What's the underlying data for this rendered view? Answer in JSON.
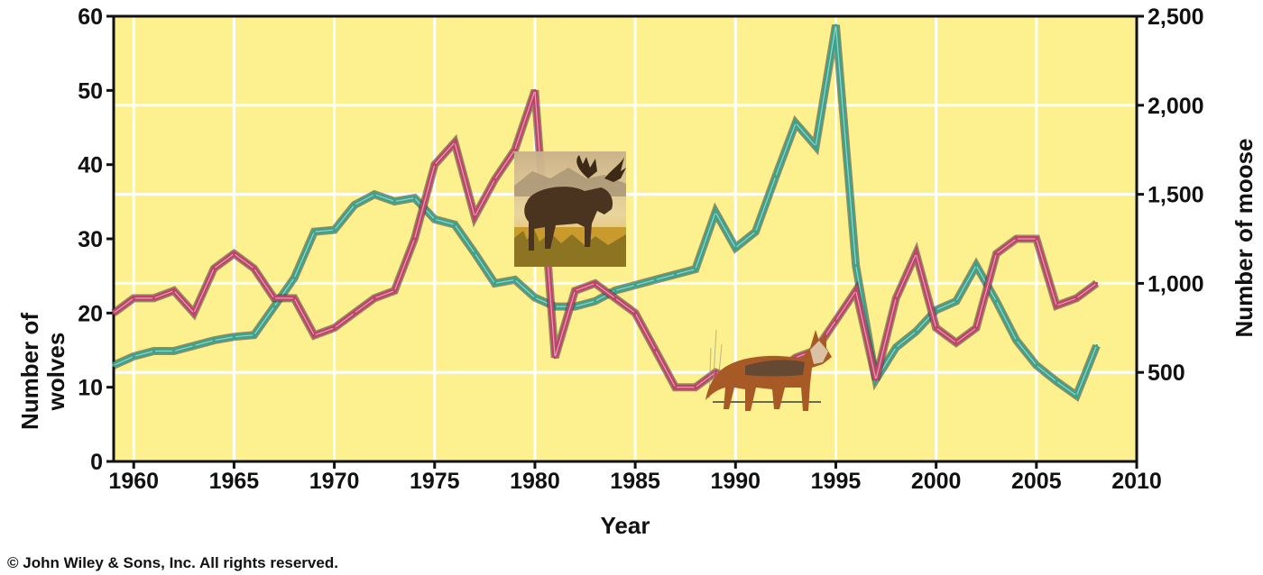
{
  "chart_data": {
    "type": "line",
    "xlabel": "Year",
    "ylabel_left": "Number of wolves",
    "ylabel_left_lines": [
      "Number of",
      "wolves"
    ],
    "ylabel_right": "Number of moose",
    "xlim": [
      1959,
      2010
    ],
    "ylim_left": [
      0,
      60
    ],
    "ylim_right": [
      0,
      2500
    ],
    "x_ticks": [
      1960,
      1965,
      1970,
      1975,
      1980,
      1985,
      1990,
      1995,
      2000,
      2005,
      2010
    ],
    "y_ticks_left": [
      0,
      10,
      20,
      30,
      40,
      50,
      60
    ],
    "y_ticks_right": [
      500,
      1000,
      1500,
      2000,
      2500
    ],
    "y_ticks_right_labels": [
      "500",
      "1,000",
      "1,500",
      "2,000",
      "2,500"
    ],
    "grid": true,
    "background_color": "#fdf08f",
    "series": [
      {
        "name": "Moose",
        "axis": "right",
        "color": "#3aa38c",
        "icon": "moose-illustration",
        "x": [
          1959,
          1960,
          1961,
          1962,
          1963,
          1964,
          1965,
          1966,
          1967,
          1968,
          1969,
          1970,
          1971,
          1972,
          1973,
          1974,
          1975,
          1976,
          1977,
          1978,
          1979,
          1980,
          1981,
          1982,
          1983,
          1984,
          1985,
          1986,
          1987,
          1988,
          1989,
          1990,
          1991,
          1992,
          1993,
          1994,
          1995,
          1996,
          1997,
          1998,
          1999,
          2000,
          2001,
          2002,
          2003,
          2004,
          2005,
          2006,
          2007,
          2008
        ],
        "values": [
          540,
          590,
          620,
          620,
          650,
          680,
          700,
          710,
          870,
          1030,
          1290,
          1300,
          1440,
          1500,
          1460,
          1480,
          1360,
          1330,
          1170,
          1000,
          1020,
          920,
          870,
          870,
          900,
          960,
          990,
          1020,
          1050,
          1080,
          1400,
          1200,
          1290,
          1600,
          1900,
          1770,
          2450,
          1100,
          460,
          640,
          730,
          850,
          900,
          1100,
          900,
          680,
          540,
          450,
          370,
          650
        ]
      },
      {
        "name": "Wolves",
        "axis": "left",
        "color": "#c0446a",
        "icon": "wolf-illustration",
        "x": [
          1959,
          1960,
          1961,
          1962,
          1963,
          1964,
          1965,
          1966,
          1967,
          1968,
          1969,
          1970,
          1971,
          1972,
          1973,
          1974,
          1975,
          1976,
          1977,
          1978,
          1979,
          1980,
          1981,
          1982,
          1983,
          1984,
          1985,
          1986,
          1987,
          1988,
          1989,
          1990,
          1991,
          1992,
          1993,
          1994,
          1995,
          1996,
          1997,
          1998,
          1999,
          2000,
          2001,
          2002,
          2003,
          2004,
          2005,
          2006,
          2007,
          2008
        ],
        "values": [
          20,
          22,
          22,
          23,
          20,
          26,
          28,
          26,
          22,
          22,
          17,
          18,
          20,
          22,
          23,
          30,
          40,
          43,
          33,
          38,
          42,
          50,
          14,
          23,
          24,
          22,
          20,
          15,
          10,
          10,
          12,
          11,
          11,
          12,
          14,
          15,
          19,
          23,
          11,
          22,
          28,
          18,
          16,
          18,
          28,
          30,
          30,
          21,
          22,
          24
        ]
      }
    ]
  },
  "copyright": "© John Wiley & Sons, Inc. All rights reserved."
}
